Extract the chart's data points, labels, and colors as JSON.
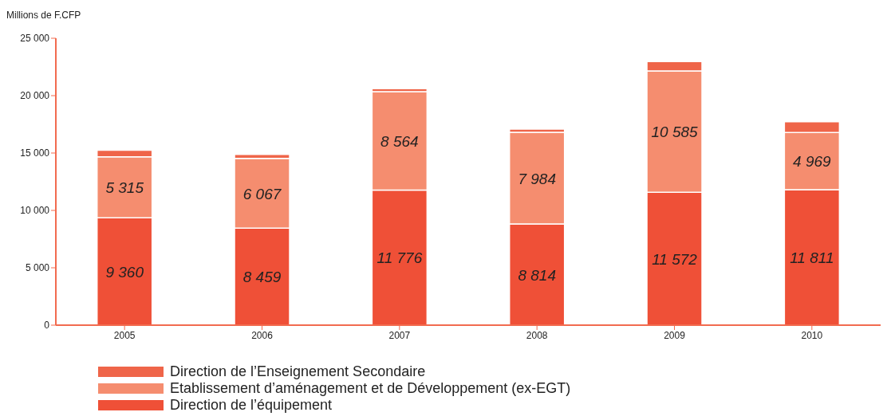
{
  "chart_data": {
    "type": "bar",
    "stacked": true,
    "ylabel": "Millions de F.CFP",
    "categories": [
      "2005",
      "2006",
      "2007",
      "2008",
      "2009",
      "2010"
    ],
    "series": [
      {
        "name": "Direction de l’équipement",
        "color": "#ef5037",
        "values": [
          9360,
          8459,
          11776,
          8814,
          11572,
          11811
        ],
        "value_labels": [
          "9 360",
          "8 459",
          "11 776",
          "8 814",
          "11 572",
          "11 811"
        ]
      },
      {
        "name": "Etablissement d’aménagement et de Développement (ex-EGT)",
        "color": "#f58d6f",
        "values": [
          5315,
          6067,
          8564,
          7984,
          10585,
          4969
        ],
        "value_labels": [
          "5 315",
          "6 067",
          "8 564",
          "7 984",
          "10 585",
          "4 969"
        ]
      },
      {
        "name": "Direction de l’Enseignement Secondaire",
        "color": "#ef6549",
        "values": [
          560,
          350,
          270,
          280,
          820,
          940
        ]
      }
    ],
    "ylim": [
      0,
      25000
    ],
    "yticks": [
      {
        "value": 0,
        "label": "0"
      },
      {
        "value": 5000,
        "label": "5 000"
      },
      {
        "value": 10000,
        "label": "10 000"
      },
      {
        "value": 15000,
        "label": "15 000"
      },
      {
        "value": 20000,
        "label": "20 000"
      },
      {
        "value": 25000,
        "label": "25 000"
      }
    ],
    "grid": false,
    "legend": "bottom left"
  }
}
